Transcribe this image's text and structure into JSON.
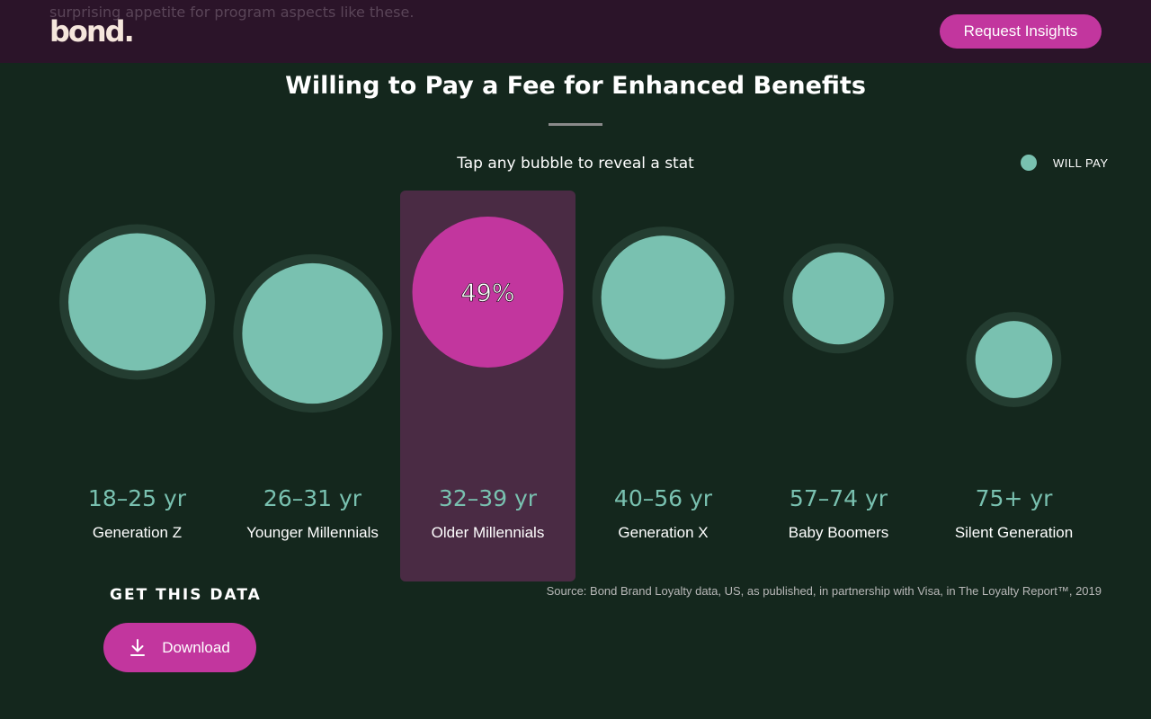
{
  "header": {
    "behind_text": "surprising appetite for program aspects like these.",
    "logo_text": "bond.",
    "cta_label": "Request Insights"
  },
  "chart_data": {
    "type": "bubble",
    "title": "Willing to Pay a Fee for Enhanced Benefits",
    "subtitle": "Tap any bubble to reveal a stat",
    "legend": {
      "label": "WILL PAY",
      "placement": "top-right"
    },
    "categories": [
      {
        "range": "18–25 yr",
        "name": "Generation Z"
      },
      {
        "range": "26–31 yr",
        "name": "Younger Millennials"
      },
      {
        "range": "32–39 yr",
        "name": "Older Millennials"
      },
      {
        "range": "40–56 yr",
        "name": "Generation X"
      },
      {
        "range": "57–74 yr",
        "name": "Baby Boomers"
      },
      {
        "range": "75+ yr",
        "name": "Silent Generation"
      }
    ],
    "selected_index": 2,
    "selected_value_label": "49%",
    "relative_size": [
      0.91,
      0.93,
      1.0,
      0.82,
      0.61,
      0.51
    ],
    "colors": {
      "bubble": "#79c1b0",
      "ring": "#243d31",
      "selected": "#c2369e",
      "highlight": "#4a2b44"
    }
  },
  "footer": {
    "get_data_label": "GET THIS DATA",
    "download_label": "Download",
    "download_icon": "download-icon",
    "source": "Source: Bond Brand Loyalty data, US, as published, in partnership with Visa, in The Loyalty Report™, 2019"
  }
}
